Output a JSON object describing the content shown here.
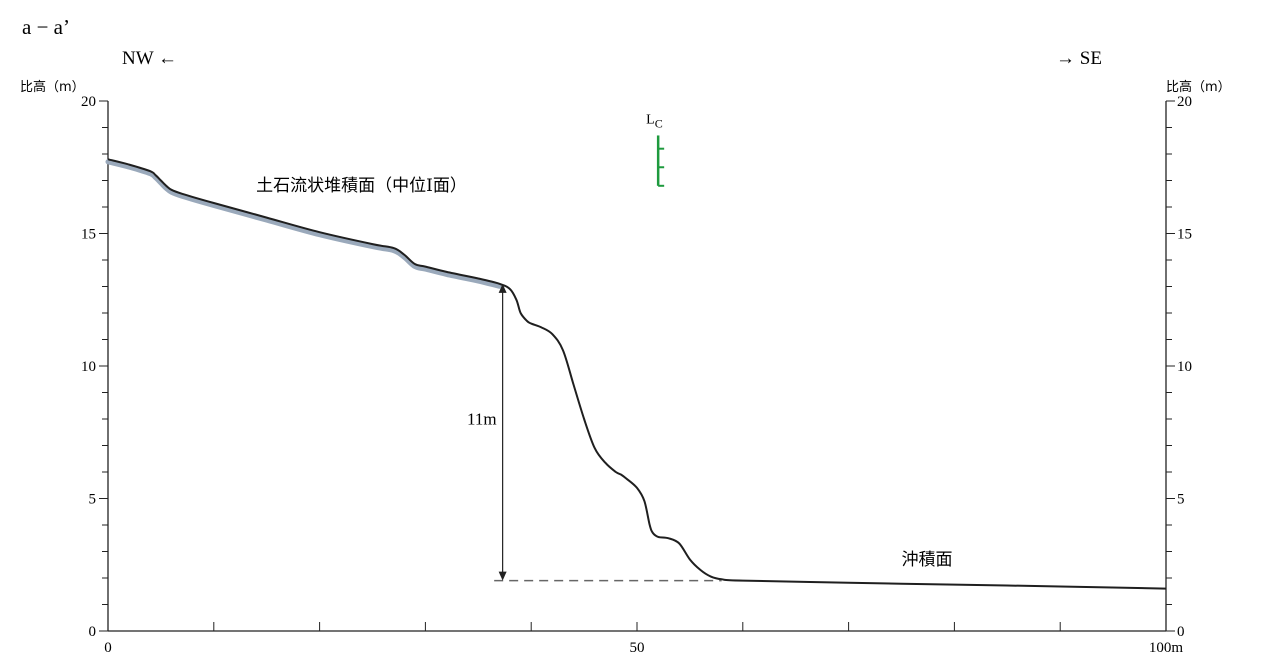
{
  "chart_data": {
    "type": "line",
    "title": "a − a’",
    "direction_left": "NW ←",
    "direction_right": "→ SE",
    "ylabel_left": "比高（m）",
    "ylabel_right": "比高（m）",
    "x_unit_label": "100m",
    "xlim": [
      0,
      100
    ],
    "ylim": [
      0,
      20
    ],
    "x_ticks": [
      0,
      10,
      20,
      30,
      40,
      50,
      60,
      70,
      80,
      90,
      100
    ],
    "x_tick_labels": [
      "0",
      "",
      "",
      "",
      "",
      "50",
      "",
      "",
      "",
      "",
      "100m"
    ],
    "y_ticks": [
      0,
      5,
      10,
      15,
      20
    ],
    "y_minor_step": 1,
    "series": [
      {
        "x": [
          0,
          2,
          4,
          4.5,
          5,
          5.5,
          6,
          7,
          10,
          15,
          20,
          25,
          27,
          28,
          29,
          30,
          32,
          35,
          37,
          38,
          38.6,
          39,
          39.6,
          40,
          41,
          42,
          43,
          44,
          45,
          46,
          47,
          48,
          48.5,
          49,
          50,
          50.7,
          51.2,
          51.5,
          52,
          53,
          54,
          55,
          56,
          57,
          58,
          60,
          70,
          80,
          90,
          100
        ],
        "y": [
          17.8,
          17.6,
          17.35,
          17.2,
          17.0,
          16.8,
          16.65,
          16.5,
          16.15,
          15.6,
          15.05,
          14.6,
          14.45,
          14.2,
          13.85,
          13.75,
          13.55,
          13.3,
          13.1,
          12.9,
          12.5,
          12.0,
          11.7,
          11.6,
          11.45,
          11.2,
          10.6,
          9.3,
          8.0,
          6.9,
          6.35,
          6.0,
          5.9,
          5.75,
          5.4,
          4.9,
          4.0,
          3.7,
          3.55,
          3.5,
          3.3,
          2.7,
          2.3,
          2.05,
          1.95,
          1.9,
          1.82,
          1.75,
          1.68,
          1.6
        ]
      }
    ],
    "upper_surface_shade_until_x": 37,
    "annotations": {
      "upper_surface_label": "土石流状堆積面（中位Ⅰ面）",
      "lower_surface_label": "沖積面",
      "height_difference_label": "11m",
      "height_arrow_x": 37.3,
      "height_arrow_top": 13.1,
      "height_arrow_bottom": 1.9,
      "dashed_line_x": [
        36.5,
        58
      ],
      "dashed_line_y": 1.9,
      "marker_label_main": "L",
      "marker_label_sub": "C",
      "marker_x": 52,
      "marker_y_range": [
        16.8,
        18.7
      ],
      "marker_ticks_y": [
        18.2,
        17.5,
        16.8
      ]
    },
    "colors": {
      "profile": "#1f1f1f",
      "surface_shade": "#9aa9bb",
      "marker": "#1e9a3e",
      "axis": "#222222",
      "dashed": "#666666"
    },
    "grid": false
  }
}
